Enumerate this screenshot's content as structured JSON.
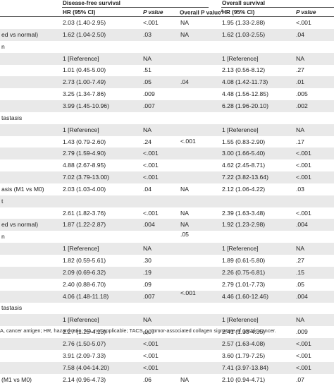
{
  "header": {
    "dfs_group": "Disease-free survival",
    "os_group": "Overall survival",
    "hr": "HR (95% CI)",
    "p": "P value",
    "overall_p": "Overall P value",
    "overall_p_sup": "a"
  },
  "rows": [
    {
      "label": "",
      "dfs_hr": "2.03 (1.40-2.95)",
      "dfs_p": "<.001",
      "dfs_overall": "NA",
      "os_hr": "1.95 (1.33-2.88)",
      "os_p": "<.001",
      "shade": false
    },
    {
      "label": "ed vs normal)",
      "dfs_hr": "1.62 (1.04-2.50)",
      "dfs_p": ".03",
      "dfs_overall": "NA",
      "os_hr": "1.62 (1.03-2.55)",
      "os_p": ".04",
      "shade": true
    },
    {
      "label": "n",
      "dfs_hr": "",
      "dfs_p": "",
      "dfs_overall": "",
      "os_hr": "",
      "os_p": "",
      "shade": false
    },
    {
      "label": "",
      "dfs_hr": "1 [Reference]",
      "dfs_p": "NA",
      "dfs_overall": "",
      "os_hr": "1 [Reference]",
      "os_p": "NA",
      "shade": true
    },
    {
      "label": "",
      "dfs_hr": "1.01 (0.45-5.00)",
      "dfs_p": ".51",
      "dfs_overall": "",
      "os_hr": "2.13 (0.56-8.12)",
      "os_p": ".27",
      "shade": false
    },
    {
      "label": "",
      "dfs_hr": "2.73 (1.00-7.49)",
      "dfs_p": ".05",
      "dfs_overall": "",
      "os_hr": "4.08 (1.42-11.73)",
      "os_p": ".01",
      "shade": true
    },
    {
      "label": "",
      "dfs_hr": "3.25 (1.34-7.86)",
      "dfs_p": ".009",
      "dfs_overall": "",
      "os_hr": "4.48 (1.56-12.85)",
      "os_p": ".005",
      "shade": false
    },
    {
      "label": "",
      "dfs_hr": "3.99 (1.45-10.96)",
      "dfs_p": ".007",
      "dfs_overall": "",
      "os_hr": "6.28 (1.96-20.10)",
      "os_p": ".002",
      "shade": true
    },
    {
      "label": "tastasis",
      "dfs_hr": "",
      "dfs_p": "",
      "dfs_overall": "",
      "os_hr": "",
      "os_p": "",
      "shade": false
    },
    {
      "label": "",
      "dfs_hr": "1 [Reference]",
      "dfs_p": "NA",
      "dfs_overall": "",
      "os_hr": "1 [Reference]",
      "os_p": "NA",
      "shade": true
    },
    {
      "label": "",
      "dfs_hr": "1.43 (0.79-2.60)",
      "dfs_p": ".24",
      "dfs_overall": "",
      "os_hr": "1.55 (0.83-2.90)",
      "os_p": ".17",
      "shade": false
    },
    {
      "label": "",
      "dfs_hr": "2.79 (1.59-4.90)",
      "dfs_p": "<.001",
      "dfs_overall": "",
      "os_hr": "3.00 (1.66-5.40)",
      "os_p": "<.001",
      "shade": true
    },
    {
      "label": "",
      "dfs_hr": "4.88 (2.67-8.95)",
      "dfs_p": "<.001",
      "dfs_overall": "",
      "os_hr": "4.62 (2.45-8.71)",
      "os_p": "<.001",
      "shade": false
    },
    {
      "label": "",
      "dfs_hr": "7.02 (3.79-13.00)",
      "dfs_p": "<.001",
      "dfs_overall": "",
      "os_hr": "7.22 (3.82-13.64)",
      "os_p": "<.001",
      "shade": true
    },
    {
      "label": "asis (M1 vs M0)",
      "dfs_hr": "2.03 (1.03-4.00)",
      "dfs_p": ".04",
      "dfs_overall": "NA",
      "os_hr": "2.12 (1.06-4.22)",
      "os_p": ".03",
      "shade": false
    },
    {
      "label": "t",
      "dfs_hr": "",
      "dfs_p": "",
      "dfs_overall": "",
      "os_hr": "",
      "os_p": "",
      "shade": true
    },
    {
      "label": "",
      "dfs_hr": "2.61 (1.82-3.76)",
      "dfs_p": "<.001",
      "dfs_overall": "NA",
      "os_hr": "2.39 (1.63-3.48)",
      "os_p": "<.001",
      "shade": false
    },
    {
      "label": "ed vs normal)",
      "dfs_hr": "1.87 (1.22-2.87)",
      "dfs_p": ".004",
      "dfs_overall": "NA",
      "os_hr": "1.92 (1.23-2.98)",
      "os_p": ".004",
      "shade": true
    },
    {
      "label": "n",
      "dfs_hr": "",
      "dfs_p": "",
      "dfs_overall": "",
      "os_hr": "",
      "os_p": "",
      "shade": false
    },
    {
      "label": "",
      "dfs_hr": "1 [Reference]",
      "dfs_p": "NA",
      "dfs_overall": "",
      "os_hr": "1 [Reference]",
      "os_p": "NA",
      "shade": true
    },
    {
      "label": "",
      "dfs_hr": "1.82 (0.59-5.61)",
      "dfs_p": ".30",
      "dfs_overall": "",
      "os_hr": "1.89 (0.61-5.80)",
      "os_p": ".27",
      "shade": false
    },
    {
      "label": "",
      "dfs_hr": "2.09 (0.69-6.32)",
      "dfs_p": ".19",
      "dfs_overall": "",
      "os_hr": "2.26 (0.75-6.81)",
      "os_p": ".15",
      "shade": true
    },
    {
      "label": "",
      "dfs_hr": "2.40 (0.88-6.70)",
      "dfs_p": ".09",
      "dfs_overall": "",
      "os_hr": "2.79 (1.01-7.73)",
      "os_p": ".05",
      "shade": false
    },
    {
      "label": "",
      "dfs_hr": "4.06 (1.48-11.18)",
      "dfs_p": ".007",
      "dfs_overall": "",
      "os_hr": "4.46 (1.60-12.46)",
      "os_p": ".004",
      "shade": true
    },
    {
      "label": "tastasis",
      "dfs_hr": "",
      "dfs_p": "",
      "dfs_overall": "",
      "os_hr": "",
      "os_p": "",
      "shade": false
    },
    {
      "label": "",
      "dfs_hr": "1 [Reference]",
      "dfs_p": "NA",
      "dfs_overall": "",
      "os_hr": "1 [Reference]",
      "os_p": "NA",
      "shade": true
    },
    {
      "label": "",
      "dfs_hr": "2.27 (1.25-4.13)",
      "dfs_p": ".007",
      "dfs_overall": "",
      "os_hr": "2.41 (1.33-4.35)",
      "os_p": ".009",
      "shade": false
    },
    {
      "label": "",
      "dfs_hr": "2.76 (1.50-5.07)",
      "dfs_p": "<.001",
      "dfs_overall": "",
      "os_hr": "2.57 (1.63-4.08)",
      "os_p": "<.001",
      "shade": true
    },
    {
      "label": "",
      "dfs_hr": "3.91 (2.09-7.33)",
      "dfs_p": "<.001",
      "dfs_overall": "",
      "os_hr": "3.60 (1.79-7.25)",
      "os_p": "<.001",
      "shade": false
    },
    {
      "label": "",
      "dfs_hr": "7.58 (4.04-14.20)",
      "dfs_p": "<.001",
      "dfs_overall": "",
      "os_hr": "7.41 (3.97-13.84)",
      "os_p": "<.001",
      "shade": true
    },
    {
      "label": "(M1 vs M0)",
      "dfs_hr": "2.14 (0.96-4.73)",
      "dfs_p": ".06",
      "dfs_overall": "NA",
      "os_hr": "2.10 (0.94-4.71)",
      "os_p": ".07",
      "shade": false
    }
  ],
  "merged_overall": [
    {
      "value": ".04"
    },
    {
      "value": "<.001"
    },
    {
      "value": ".05"
    },
    {
      "value": "<.001"
    }
  ],
  "footnote": "A, cancer antigen; HR, hazard ratio; NA, not applicable; TACS",
  "footnote_sub": "GC",
  "footnote_tail": ", tumor-associated collagen signature of gastric cancer."
}
